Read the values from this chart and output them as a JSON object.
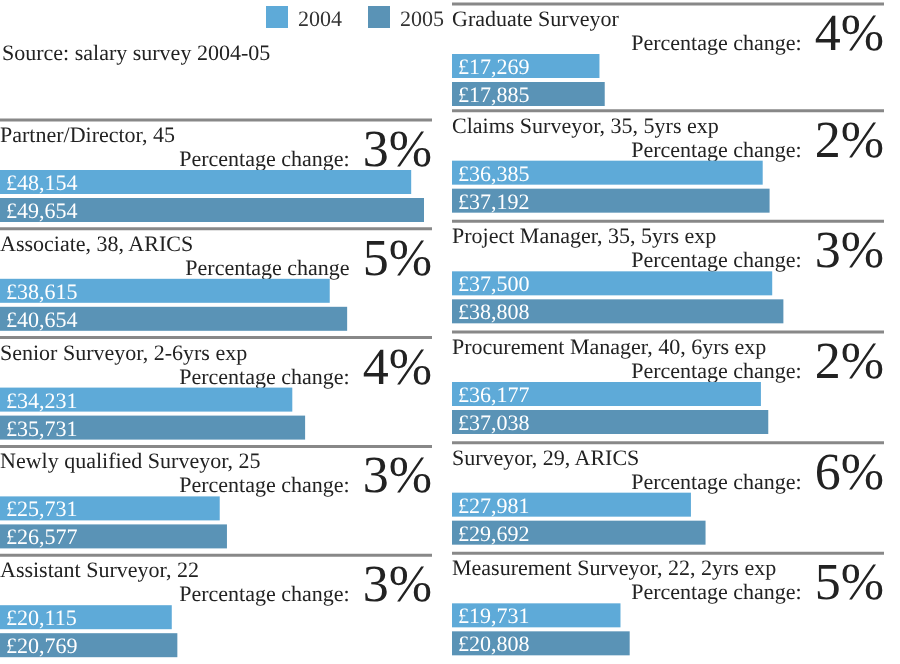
{
  "chart_data": [
    {
      "type": "bar",
      "orientation": "horizontal",
      "title": "Partner/Director, 45",
      "categories": [
        null
      ],
      "legend": "top",
      "tick_labels": false,
      "annotations": [
        "Percentage change: 3%",
        "Source: salary survey 2004-05"
      ],
      "series": [
        {
          "name": "2004",
          "color": "#5eaad8",
          "values": [
            48154
          ],
          "value_labels": [
            "£48,154"
          ]
        },
        {
          "name": "2005",
          "color": "#5a93b6",
          "values": [
            49654
          ],
          "value_labels": [
            "£49,654"
          ]
        }
      ]
    },
    {
      "type": "bar",
      "orientation": "horizontal",
      "title": "Associate, 38, ARICS",
      "categories": [
        null
      ],
      "tick_labels": false,
      "annotations": [
        "Percentage change 5%"
      ],
      "series": [
        {
          "color": "#5eaad8",
          "values": [
            38615
          ],
          "value_labels": [
            "£38,615"
          ]
        },
        {
          "color": "#5a93b6",
          "values": [
            40654
          ],
          "value_labels": [
            "£40,654"
          ]
        }
      ]
    },
    {
      "type": "bar",
      "orientation": "horizontal",
      "title": "Senior Surveyor, 2-6yrs exp",
      "categories": [
        null
      ],
      "tick_labels": false,
      "annotations": [
        "Percentage change: 4%"
      ],
      "series": [
        {
          "color": "#5eaad8",
          "values": [
            34231
          ],
          "value_labels": [
            "£34,231"
          ]
        },
        {
          "color": "#5a93b6",
          "values": [
            35731
          ],
          "value_labels": [
            "£35,731"
          ]
        }
      ]
    },
    {
      "type": "bar",
      "orientation": "horizontal",
      "title": "Newly qualified Surveyor, 25",
      "categories": [
        null
      ],
      "tick_labels": false,
      "annotations": [
        "Percentage change: 3%"
      ],
      "series": [
        {
          "color": "#5eaad8",
          "values": [
            25731
          ],
          "value_labels": [
            "£25,731"
          ]
        },
        {
          "color": "#5a93b6",
          "values": [
            26577
          ],
          "value_labels": [
            "£26,577"
          ]
        }
      ]
    },
    {
      "type": "bar",
      "orientation": "horizontal",
      "title": "Assistant Surveyor, 22",
      "categories": [
        null
      ],
      "tick_labels": false,
      "annotations": [
        "Percentage change: 3%"
      ],
      "series": [
        {
          "color": "#5eaad8",
          "values": [
            20115
          ],
          "value_labels": [
            "£20,115"
          ]
        },
        {
          "color": "#5a93b6",
          "values": [
            20769
          ],
          "value_labels": [
            "£20,769"
          ]
        }
      ]
    },
    {
      "type": "bar",
      "orientation": "horizontal",
      "title": "Graduate Surveyor",
      "categories": [
        null
      ],
      "tick_labels": false,
      "annotations": [
        "Percentage change: 4%"
      ],
      "series": [
        {
          "color": "#5eaad8",
          "values": [
            17269
          ],
          "value_labels": [
            "£17,269"
          ]
        },
        {
          "color": "#5a93b6",
          "values": [
            17885
          ],
          "value_labels": [
            "£17,885"
          ]
        }
      ]
    },
    {
      "type": "bar",
      "orientation": "horizontal",
      "title": "Claims Surveyor, 35, 5yrs exp",
      "categories": [
        null
      ],
      "tick_labels": false,
      "annotations": [
        "Percentage change: 2%"
      ],
      "series": [
        {
          "color": "#5eaad8",
          "values": [
            36385
          ],
          "value_labels": [
            "£36,385"
          ]
        },
        {
          "color": "#5a93b6",
          "values": [
            37192
          ],
          "value_labels": [
            "£37,192"
          ]
        }
      ]
    },
    {
      "type": "bar",
      "orientation": "horizontal",
      "title": "Project Manager, 35, 5yrs exp",
      "categories": [
        null
      ],
      "tick_labels": false,
      "annotations": [
        "Percentage change: 3%"
      ],
      "series": [
        {
          "color": "#5eaad8",
          "values": [
            37500
          ],
          "value_labels": [
            "£37,500"
          ]
        },
        {
          "color": "#5a93b6",
          "values": [
            38808
          ],
          "value_labels": [
            "£38,808"
          ]
        }
      ]
    },
    {
      "type": "bar",
      "orientation": "horizontal",
      "title": "Procurement Manager, 40, 6yrs exp",
      "categories": [
        null
      ],
      "tick_labels": false,
      "annotations": [
        "Percentage change: 2%"
      ],
      "series": [
        {
          "color": "#5eaad8",
          "values": [
            36177
          ],
          "value_labels": [
            "£36,177"
          ]
        },
        {
          "color": "#5a93b6",
          "values": [
            37038
          ],
          "value_labels": [
            "£37,038"
          ]
        }
      ]
    },
    {
      "type": "bar",
      "orientation": "horizontal",
      "title": "Surveyor, 29, ARICS",
      "categories": [
        null
      ],
      "tick_labels": false,
      "annotations": [
        "Percentage change: 6%"
      ],
      "series": [
        {
          "color": "#5eaad8",
          "values": [
            27981
          ],
          "value_labels": [
            "£27,981"
          ]
        },
        {
          "color": "#5a93b6",
          "values": [
            29692
          ],
          "value_labels": [
            "£29,692"
          ]
        }
      ]
    },
    {
      "type": "bar",
      "orientation": "horizontal",
      "title": "Measurement Surveyor, 22, 2yrs exp",
      "categories": [
        null
      ],
      "tick_labels": false,
      "annotations": [
        "Percentage change: 5%"
      ],
      "series": [
        {
          "color": "#5eaad8",
          "values": [
            19731
          ],
          "value_labels": [
            "£19,731"
          ]
        },
        {
          "color": "#5a93b6",
          "values": [
            20808
          ],
          "value_labels": [
            "£20,808"
          ]
        }
      ]
    }
  ]
}
